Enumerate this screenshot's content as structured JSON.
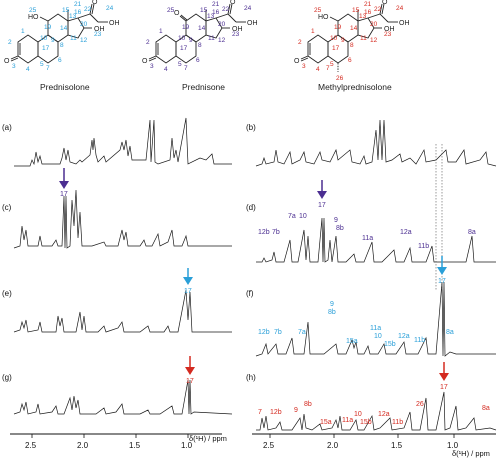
{
  "structures": [
    {
      "name": "Prednisolone",
      "num_color": "#2a9fd8",
      "numbers": [
        "1",
        "2",
        "3",
        "4",
        "5",
        "6",
        "7",
        "8",
        "9",
        "10",
        "11",
        "12",
        "13",
        "14",
        "15",
        "16",
        "17",
        "19",
        "20",
        "21",
        "22",
        "23",
        "24",
        "25"
      ]
    },
    {
      "name": "Prednisone",
      "num_color": "#4b2e91",
      "numbers": [
        "1",
        "2",
        "3",
        "4",
        "5",
        "6",
        "7",
        "8",
        "9",
        "10",
        "11",
        "12",
        "13",
        "14",
        "15",
        "16",
        "17",
        "19",
        "20",
        "21",
        "22",
        "23",
        "24",
        "25"
      ]
    },
    {
      "name": "Methylprednisolone",
      "num_color": "#d42a20",
      "numbers": [
        "1",
        "2",
        "3",
        "4",
        "5",
        "6",
        "7",
        "8",
        "9",
        "10",
        "11",
        "12",
        "13",
        "14",
        "15",
        "16",
        "17",
        "19",
        "20",
        "21",
        "22",
        "23",
        "24",
        "25",
        "26"
      ]
    }
  ],
  "atoms": {
    "ho": "HO",
    "oh": "OH",
    "o": "O"
  },
  "panels": {
    "a": "(a)",
    "b": "(b)",
    "c": "(c)",
    "d": "(d)",
    "e": "(e)",
    "f": "(f)",
    "g": "(g)",
    "h": "(h)"
  },
  "colors": {
    "blue": "#2a9fd8",
    "purple": "#4b2e91",
    "red": "#d42a20",
    "trace": "#1a1a1a"
  },
  "arrows": {
    "c": "17",
    "d": "17",
    "e": "17",
    "f": "17",
    "g": "17",
    "h": "17"
  },
  "peak_labels_d": [
    "12b",
    "7b",
    "7a",
    "10",
    "9",
    "8b",
    "11a",
    "12a",
    "11b",
    "8a"
  ],
  "peak_labels_f": [
    "12b",
    "7b",
    "7a",
    "9",
    "8b",
    "15a",
    "11a",
    "10",
    "15b",
    "12a",
    "11b",
    "8a"
  ],
  "peak_labels_h": [
    "7",
    "12b",
    "9",
    "8b",
    "15a",
    "11a",
    "10",
    "15b",
    "12a",
    "11b",
    "26",
    "8a"
  ],
  "axis_left": {
    "ticks": [
      "2.5",
      "2.0",
      "1.5",
      "1.0"
    ],
    "title": "δ(¹H) / ppm"
  },
  "axis_right": {
    "ticks": [
      "2.5",
      "2.0",
      "1.5",
      "1.0"
    ],
    "title": "δ(¹H) / ppm"
  }
}
